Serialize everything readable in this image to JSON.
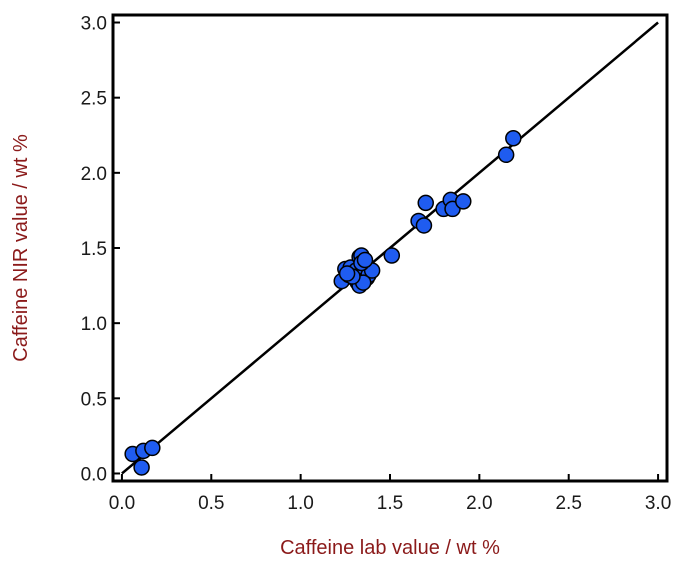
{
  "chart_data": {
    "type": "scatter",
    "xlabel": "Caffeine lab value / wt %",
    "ylabel": "Caffeine NIR value / wt %",
    "xlim": [
      -0.05,
      3.05
    ],
    "ylim": [
      -0.05,
      3.05
    ],
    "xticks": [
      "0.0",
      "0.5",
      "1.0",
      "1.5",
      "2.0",
      "2.5",
      "3.0"
    ],
    "yticks": [
      "0.0",
      "0.5",
      "1.0",
      "1.5",
      "2.0",
      "2.5",
      "3.0"
    ],
    "grid": false,
    "legend": "none",
    "reference_line": {
      "from": [
        0.0,
        0.0
      ],
      "to": [
        3.0,
        3.0
      ]
    },
    "series": [
      {
        "color": "#1f5cf0",
        "x": [
          0.06,
          0.11,
          0.12,
          0.17,
          1.23,
          1.25,
          1.27,
          1.28,
          1.3,
          1.31,
          1.32,
          1.33,
          1.34,
          1.35,
          1.36,
          1.37,
          1.38,
          1.4,
          1.33,
          1.35,
          1.34,
          1.36,
          1.29,
          1.26,
          1.51,
          1.66,
          1.69,
          1.7,
          1.8,
          1.84,
          1.85,
          1.91,
          2.15,
          2.19
        ],
        "y": [
          0.13,
          0.04,
          0.15,
          0.17,
          1.28,
          1.36,
          1.32,
          1.37,
          1.3,
          1.35,
          1.27,
          1.44,
          1.45,
          1.38,
          1.35,
          1.3,
          1.32,
          1.35,
          1.25,
          1.27,
          1.4,
          1.42,
          1.31,
          1.33,
          1.45,
          1.68,
          1.65,
          1.8,
          1.76,
          1.82,
          1.76,
          1.81,
          2.12,
          2.23
        ]
      }
    ]
  }
}
